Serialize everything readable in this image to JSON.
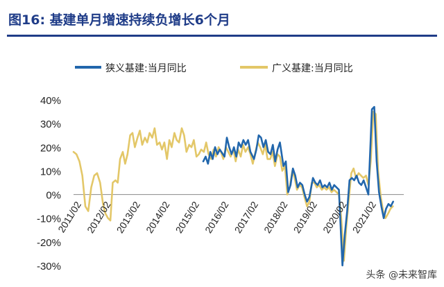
{
  "figure": {
    "title": "图16:  基建单月增速持续负增长6个月",
    "watermark": "头条 @未来智库"
  },
  "colors": {
    "narrow": "#2166ac",
    "broad": "#e3c768",
    "title": "#1f3c88",
    "axis_text": "#222222"
  },
  "chart_data": {
    "type": "line",
    "title": "",
    "xlabel": "",
    "ylabel": "",
    "legend_position": "top",
    "grid": false,
    "y_unit": "%",
    "ylim": [
      -30,
      40
    ],
    "y_ticks": [
      40,
      30,
      20,
      10,
      0,
      -10,
      -20,
      -30
    ],
    "y_tick_labels": [
      "40%",
      "30%",
      "20%",
      "10%",
      "0%",
      "-10%",
      "-20%",
      "-30%"
    ],
    "x_ticks": [
      {
        "label": "2011/02",
        "x": 2011.083
      },
      {
        "label": "2012/02",
        "x": 2012.083
      },
      {
        "label": "2013/02",
        "x": 2013.083
      },
      {
        "label": "2014/02",
        "x": 2014.083
      },
      {
        "label": "2015/02",
        "x": 2015.083
      },
      {
        "label": "2016/02",
        "x": 2016.083
      },
      {
        "label": "2017/02",
        "x": 2017.083
      },
      {
        "label": "2018/02",
        "x": 2018.083
      },
      {
        "label": "2019/02",
        "x": 2019.083
      },
      {
        "label": "2020/02",
        "x": 2020.083
      },
      {
        "label": "2021/02",
        "x": 2021.083
      }
    ],
    "xlim": [
      2011.0,
      2022.2
    ],
    "series": [
      {
        "name": "狭义基建:当月同比",
        "points": [
          [
            2015.4,
            14
          ],
          [
            2015.48,
            16
          ],
          [
            2015.56,
            13
          ],
          [
            2015.64,
            18
          ],
          [
            2015.72,
            15
          ],
          [
            2015.8,
            20
          ],
          [
            2015.88,
            17
          ],
          [
            2015.96,
            19
          ],
          [
            2016.12,
            16
          ],
          [
            2016.2,
            24
          ],
          [
            2016.28,
            20
          ],
          [
            2016.36,
            17
          ],
          [
            2016.44,
            20
          ],
          [
            2016.52,
            16
          ],
          [
            2016.6,
            22
          ],
          [
            2016.68,
            20
          ],
          [
            2016.76,
            23
          ],
          [
            2016.84,
            21
          ],
          [
            2016.92,
            23
          ],
          [
            2017.0,
            18
          ],
          [
            2017.12,
            15
          ],
          [
            2017.2,
            19
          ],
          [
            2017.28,
            25
          ],
          [
            2017.36,
            24
          ],
          [
            2017.44,
            20
          ],
          [
            2017.52,
            23
          ],
          [
            2017.6,
            18
          ],
          [
            2017.68,
            17
          ],
          [
            2017.76,
            21
          ],
          [
            2017.84,
            14
          ],
          [
            2017.92,
            19
          ],
          [
            2018.0,
            22
          ],
          [
            2018.12,
            12
          ],
          [
            2018.2,
            14
          ],
          [
            2018.28,
            1
          ],
          [
            2018.36,
            4
          ],
          [
            2018.44,
            11
          ],
          [
            2018.52,
            8
          ],
          [
            2018.6,
            3
          ],
          [
            2018.68,
            5
          ],
          [
            2018.76,
            4
          ],
          [
            2018.84,
            0
          ],
          [
            2018.92,
            -3
          ],
          [
            2019.0,
            -1
          ],
          [
            2019.12,
            7
          ],
          [
            2019.2,
            5
          ],
          [
            2019.28,
            4
          ],
          [
            2019.36,
            6
          ],
          [
            2019.44,
            3
          ],
          [
            2019.52,
            4
          ],
          [
            2019.6,
            3
          ],
          [
            2019.68,
            5
          ],
          [
            2019.76,
            2
          ],
          [
            2019.84,
            4
          ],
          [
            2019.92,
            3
          ],
          [
            2020.0,
            2
          ],
          [
            2020.12,
            -30
          ],
          [
            2020.2,
            -17
          ],
          [
            2020.28,
            -7
          ],
          [
            2020.36,
            6
          ],
          [
            2020.44,
            7
          ],
          [
            2020.52,
            6
          ],
          [
            2020.6,
            8
          ],
          [
            2020.68,
            5
          ],
          [
            2020.76,
            4
          ],
          [
            2020.84,
            6
          ],
          [
            2020.92,
            3
          ],
          [
            2021.0,
            0
          ],
          [
            2021.12,
            36
          ],
          [
            2021.2,
            37
          ],
          [
            2021.28,
            14
          ],
          [
            2021.36,
            1
          ],
          [
            2021.44,
            -5
          ],
          [
            2021.52,
            -10
          ],
          [
            2021.6,
            -6
          ],
          [
            2021.68,
            -4
          ],
          [
            2021.76,
            -5
          ],
          [
            2021.84,
            -3
          ]
        ]
      },
      {
        "name": "广义基建:当月同比",
        "points": [
          [
            2011.0,
            18
          ],
          [
            2011.1,
            17
          ],
          [
            2011.2,
            14
          ],
          [
            2011.3,
            8
          ],
          [
            2011.4,
            -5
          ],
          [
            2011.5,
            -7
          ],
          [
            2011.6,
            3
          ],
          [
            2011.7,
            8
          ],
          [
            2011.8,
            9
          ],
          [
            2011.9,
            5
          ],
          [
            2012.0,
            -4
          ],
          [
            2012.08,
            -8
          ],
          [
            2012.17,
            -10
          ],
          [
            2012.25,
            -11
          ],
          [
            2012.33,
            5
          ],
          [
            2012.42,
            6
          ],
          [
            2012.5,
            5
          ],
          [
            2012.58,
            15
          ],
          [
            2012.67,
            18
          ],
          [
            2012.75,
            13
          ],
          [
            2012.83,
            17
          ],
          [
            2012.92,
            25
          ],
          [
            2013.0,
            26
          ],
          [
            2013.08,
            20
          ],
          [
            2013.17,
            24
          ],
          [
            2013.25,
            27
          ],
          [
            2013.33,
            21
          ],
          [
            2013.42,
            24
          ],
          [
            2013.5,
            22
          ],
          [
            2013.58,
            26
          ],
          [
            2013.67,
            24
          ],
          [
            2013.75,
            28
          ],
          [
            2013.83,
            21
          ],
          [
            2013.92,
            22
          ],
          [
            2014.0,
            19
          ],
          [
            2014.08,
            22
          ],
          [
            2014.17,
            15
          ],
          [
            2014.25,
            23
          ],
          [
            2014.33,
            20
          ],
          [
            2014.42,
            26
          ],
          [
            2014.5,
            23
          ],
          [
            2014.58,
            22
          ],
          [
            2014.67,
            28
          ],
          [
            2014.75,
            25
          ],
          [
            2014.83,
            18
          ],
          [
            2014.92,
            21
          ],
          [
            2015.0,
            20
          ],
          [
            2015.08,
            23
          ],
          [
            2015.17,
            16
          ],
          [
            2015.25,
            17
          ],
          [
            2015.33,
            19
          ],
          [
            2015.42,
            18
          ],
          [
            2015.5,
            22
          ],
          [
            2015.58,
            17
          ],
          [
            2015.67,
            15
          ],
          [
            2015.75,
            19
          ],
          [
            2015.83,
            16
          ],
          [
            2015.92,
            20
          ],
          [
            2016.0,
            18
          ],
          [
            2016.08,
            15
          ],
          [
            2016.17,
            20
          ],
          [
            2016.25,
            18
          ],
          [
            2016.33,
            16
          ],
          [
            2016.42,
            19
          ],
          [
            2016.5,
            14
          ],
          [
            2016.58,
            19
          ],
          [
            2016.67,
            16
          ],
          [
            2016.75,
            21
          ],
          [
            2016.83,
            18
          ],
          [
            2016.92,
            20
          ],
          [
            2017.0,
            17
          ],
          [
            2017.08,
            13
          ],
          [
            2017.17,
            18
          ],
          [
            2017.25,
            22
          ],
          [
            2017.33,
            20
          ],
          [
            2017.42,
            17
          ],
          [
            2017.5,
            21
          ],
          [
            2017.58,
            15
          ],
          [
            2017.67,
            15
          ],
          [
            2017.75,
            18
          ],
          [
            2017.83,
            12
          ],
          [
            2017.92,
            17
          ],
          [
            2018.0,
            16
          ],
          [
            2018.08,
            10
          ],
          [
            2018.17,
            12
          ],
          [
            2018.25,
            0
          ],
          [
            2018.33,
            3
          ],
          [
            2018.42,
            10
          ],
          [
            2018.5,
            7
          ],
          [
            2018.58,
            2
          ],
          [
            2018.67,
            4
          ],
          [
            2018.75,
            3
          ],
          [
            2018.83,
            -1
          ],
          [
            2018.92,
            -5
          ],
          [
            2019.0,
            -3
          ],
          [
            2019.08,
            5
          ],
          [
            2019.17,
            5
          ],
          [
            2019.25,
            3
          ],
          [
            2019.33,
            4
          ],
          [
            2019.42,
            2
          ],
          [
            2019.5,
            3
          ],
          [
            2019.58,
            2
          ],
          [
            2019.67,
            3
          ],
          [
            2019.75,
            1
          ],
          [
            2019.83,
            2
          ],
          [
            2019.92,
            1
          ],
          [
            2020.0,
            0
          ],
          [
            2020.08,
            -10
          ],
          [
            2020.17,
            -28
          ],
          [
            2020.25,
            -14
          ],
          [
            2020.33,
            -3
          ],
          [
            2020.42,
            9
          ],
          [
            2020.5,
            11
          ],
          [
            2020.58,
            7
          ],
          [
            2020.67,
            9
          ],
          [
            2020.75,
            8
          ],
          [
            2020.83,
            7
          ],
          [
            2020.92,
            8
          ],
          [
            2021.0,
            4
          ],
          [
            2021.08,
            14
          ],
          [
            2021.17,
            35
          ],
          [
            2021.25,
            34
          ],
          [
            2021.33,
            10
          ],
          [
            2021.42,
            -1
          ],
          [
            2021.5,
            -7
          ],
          [
            2021.58,
            -10
          ],
          [
            2021.67,
            -8
          ],
          [
            2021.75,
            -6
          ],
          [
            2021.83,
            -5
          ]
        ]
      }
    ]
  }
}
